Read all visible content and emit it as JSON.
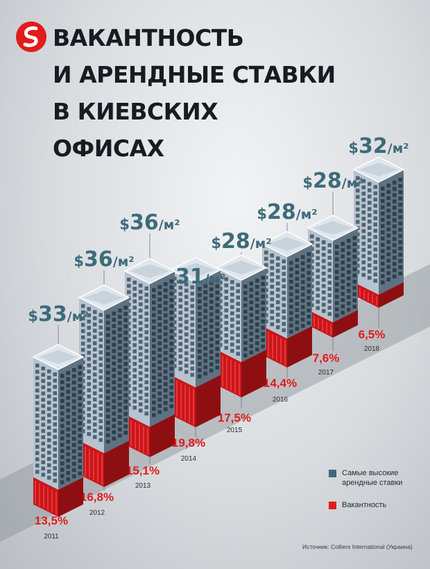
{
  "title": {
    "line1": "ВАКАНТНОСТЬ",
    "line2": "И АРЕНДНЫЕ СТАВКИ",
    "line3": "В КИЕВСКИХ",
    "line4": "ОФИСАХ"
  },
  "colors": {
    "rent": "#3d6b7a",
    "vacancy": "#e21b1b",
    "building_face_left": "#b7c3ce",
    "building_face_right": "#5f7282",
    "building_roof": "#dfe6ed"
  },
  "legend": {
    "rent": "Самые высокие арендные ставки",
    "vacancy": "Вакантность"
  },
  "source": "Источник: Colliers International (Украина)",
  "chart_data": {
    "type": "bar",
    "categories": [
      "2011",
      "2012",
      "2013",
      "2014",
      "2015",
      "2016",
      "2017",
      "2018"
    ],
    "series": [
      {
        "name": "Самые высокие арендные ставки",
        "values": [
          33,
          36,
          36,
          31,
          28,
          28,
          28,
          32
        ],
        "labels": [
          "$33/м²",
          "$36/м²",
          "$36/м²",
          "$31/м²",
          "$28/м²",
          "$28/м²",
          "$28/м²",
          "$32/м²"
        ]
      },
      {
        "name": "Вакантность",
        "values": [
          13.5,
          16.8,
          15.1,
          19.8,
          17.5,
          14.4,
          7.6,
          6.5
        ],
        "labels": [
          "13,5%",
          "16,8%",
          "15,1%",
          "19,8%",
          "17,5%",
          "14,4%",
          "7,6%",
          "6,5%"
        ]
      }
    ]
  }
}
